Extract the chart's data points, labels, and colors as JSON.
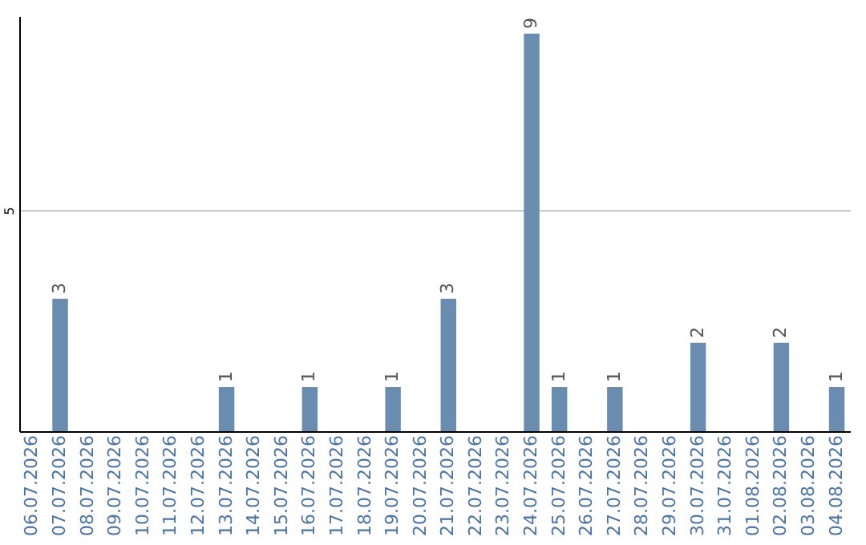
{
  "chart_data": {
    "type": "bar",
    "categories": [
      "06.07.2026",
      "07.07.2026",
      "08.07.2026",
      "09.07.2026",
      "10.07.2026",
      "11.07.2026",
      "12.07.2026",
      "13.07.2026",
      "14.07.2026",
      "15.07.2026",
      "16.07.2026",
      "17.07.2026",
      "18.07.2026",
      "19.07.2026",
      "20.07.2026",
      "21.07.2026",
      "22.07.2026",
      "23.07.2026",
      "24.07.2026",
      "25.07.2026",
      "26.07.2026",
      "27.07.2026",
      "28.07.2026",
      "29.07.2026",
      "30.07.2026",
      "31.07.2026",
      "01.08.2026",
      "02.08.2026",
      "03.08.2026",
      "04.08.2026"
    ],
    "values": [
      0,
      3,
      0,
      0,
      0,
      0,
      0,
      1,
      0,
      0,
      1,
      0,
      0,
      1,
      0,
      3,
      0,
      0,
      9,
      1,
      0,
      1,
      0,
      0,
      2,
      0,
      0,
      2,
      0,
      1
    ],
    "value_labels": [
      null,
      "3",
      null,
      null,
      null,
      null,
      null,
      "1",
      null,
      null,
      "1",
      null,
      null,
      "1",
      null,
      "3",
      null,
      null,
      "9",
      "1",
      null,
      "1",
      null,
      null,
      "2",
      null,
      null,
      "2",
      null,
      "1"
    ],
    "color": "#6a8caf",
    "ylim": [
      0,
      9.4
    ],
    "yticks": [
      5
    ],
    "grid": "y"
  }
}
